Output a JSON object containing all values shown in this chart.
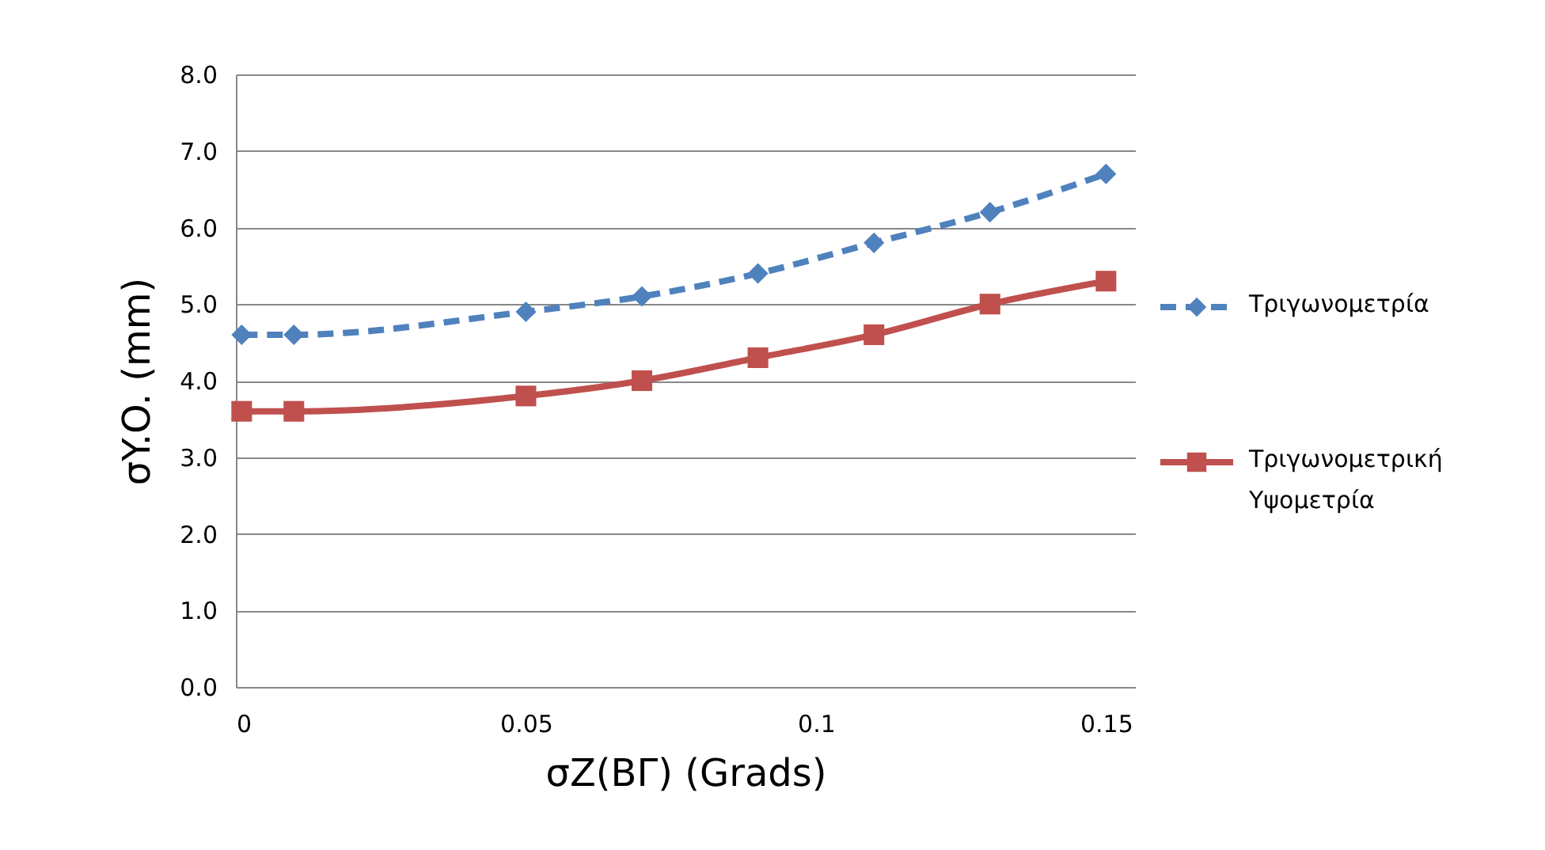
{
  "chart_data": {
    "type": "line",
    "xlabel": "σZ(ΒΓ) (Grads)",
    "ylabel": "σY.O. (mm)",
    "x": [
      0.001,
      0.01,
      0.05,
      0.07,
      0.09,
      0.11,
      0.13,
      0.15
    ],
    "series": [
      {
        "name": "Τριγωνομετρία",
        "color": "#4f81bd",
        "marker": "diamond",
        "line_style": "dashed",
        "values": [
          4.6,
          4.6,
          4.9,
          5.1,
          5.4,
          5.8,
          6.2,
          6.7
        ]
      },
      {
        "name": "Τριγωνομετρική Υψομετρία",
        "color": "#c0504d",
        "marker": "square",
        "line_style": "solid",
        "values": [
          3.6,
          3.6,
          3.8,
          4.0,
          4.3,
          4.6,
          5.0,
          5.3
        ]
      }
    ],
    "xlim": [
      0,
      0.155
    ],
    "xticks": [
      0,
      0.05,
      0.1,
      0.15
    ],
    "ylim": [
      0,
      8
    ],
    "yticks": [
      {
        "value": 0,
        "label": "0.0"
      },
      {
        "value": 1,
        "label": "1.0"
      },
      {
        "value": 2,
        "label": "2.0"
      },
      {
        "value": 3,
        "label": "3.0"
      },
      {
        "value": 4,
        "label": "4.0"
      },
      {
        "value": 5,
        "label": "5.0"
      },
      {
        "value": 6,
        "label": "6.0"
      },
      {
        "value": 7,
        "label": "7.0"
      },
      {
        "value": 8,
        "label": "8.0"
      }
    ],
    "grid": "y",
    "legend": "right"
  }
}
